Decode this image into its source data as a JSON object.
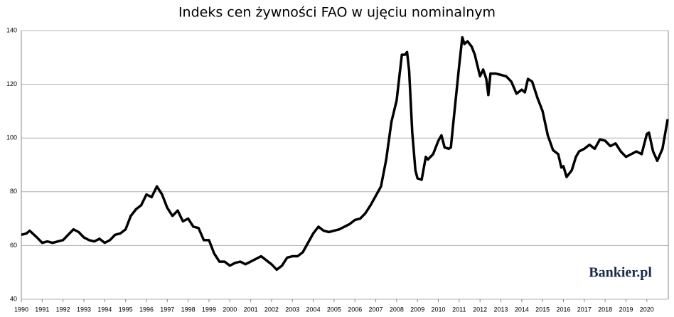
{
  "chart_data": {
    "type": "line",
    "title": "Indeks cen żywności FAO w ujęciu nominalnym",
    "watermark": "Bankier.pl",
    "x": [
      1990,
      1990.25,
      1990.4,
      1990.75,
      1991,
      1991.25,
      1991.5,
      1991.75,
      1992,
      1992.25,
      1992.5,
      1992.75,
      1993,
      1993.25,
      1993.5,
      1993.75,
      1994,
      1994.25,
      1994.5,
      1994.75,
      1995,
      1995.25,
      1995.5,
      1995.75,
      1996,
      1996.25,
      1996.5,
      1996.75,
      1997,
      1997.25,
      1997.5,
      1997.75,
      1998,
      1998.25,
      1998.5,
      1998.75,
      1999,
      1999.25,
      1999.5,
      1999.75,
      2000,
      2000.25,
      2000.5,
      2000.75,
      2001,
      2001.25,
      2001.5,
      2001.75,
      2002,
      2002.25,
      2002.5,
      2002.75,
      2003,
      2003.25,
      2003.5,
      2003.75,
      2004,
      2004.25,
      2004.5,
      2004.75,
      2005,
      2005.25,
      2005.5,
      2005.75,
      2006,
      2006.25,
      2006.5,
      2006.75,
      2007,
      2007.25,
      2007.5,
      2007.75,
      2008,
      2008.25,
      2008.4,
      2008.5,
      2008.6,
      2008.75,
      2008.9,
      2009,
      2009.2,
      2009.4,
      2009.5,
      2009.75,
      2010,
      2010.15,
      2010.3,
      2010.5,
      2010.6,
      2010.75,
      2011,
      2011.15,
      2011.25,
      2011.4,
      2011.6,
      2011.75,
      2012,
      2012.15,
      2012.3,
      2012.4,
      2012.5,
      2012.75,
      2013,
      2013.25,
      2013.5,
      2013.75,
      2014,
      2014.15,
      2014.3,
      2014.5,
      2014.75,
      2015,
      2015.25,
      2015.5,
      2015.75,
      2015.9,
      2016,
      2016.15,
      2016.4,
      2016.6,
      2016.75,
      2017,
      2017.25,
      2017.5,
      2017.75,
      2018,
      2018.25,
      2018.5,
      2018.75,
      2019,
      2019.25,
      2019.5,
      2019.75,
      2020,
      2020.1,
      2020.3,
      2020.5,
      2020.75,
      2021
    ],
    "series": [
      {
        "name": "FAO",
        "color": "#000000",
        "values": [
          64,
          64.5,
          65.5,
          63,
          61,
          61.5,
          61,
          61.5,
          62,
          64,
          66,
          65,
          63,
          62,
          61.5,
          62.5,
          61,
          62,
          64,
          64.5,
          66,
          71,
          73.5,
          75,
          79,
          78,
          82,
          79,
          74,
          71,
          73,
          69,
          70,
          67,
          66.5,
          62,
          62,
          57,
          54,
          54,
          52.5,
          53.5,
          54,
          53,
          54,
          55,
          56,
          54.5,
          53,
          51,
          52.5,
          55.5,
          56,
          56,
          57.5,
          61,
          64.5,
          67,
          65.5,
          65,
          65.5,
          66,
          67,
          68,
          69.5,
          70,
          72,
          75,
          78.5,
          82,
          92,
          106,
          114,
          131,
          131,
          132,
          125,
          102,
          88,
          85,
          84.5,
          93,
          92,
          94,
          99,
          101,
          96.5,
          96,
          96.5,
          108,
          127,
          137.5,
          135,
          136,
          134,
          131,
          123,
          125.5,
          122,
          116,
          124,
          124,
          123.5,
          123,
          121,
          116.5,
          118,
          117,
          122,
          121,
          115,
          110,
          101,
          95.5,
          94,
          89,
          89.5,
          85.5,
          88,
          93,
          95,
          96,
          97.5,
          96,
          99.5,
          99,
          97,
          98,
          95,
          93,
          94,
          95,
          94,
          101.5,
          102,
          95,
          91.5,
          96,
          107
        ]
      }
    ],
    "xlim": [
      1990,
      2021.03
    ],
    "xticks": [
      1990,
      1991,
      1992,
      1993,
      1994,
      1995,
      1996,
      1997,
      1998,
      1999,
      2000,
      2001,
      2002,
      2003,
      2004,
      2005,
      2006,
      2007,
      2008,
      2009,
      2010,
      2011,
      2012,
      2013,
      2014,
      2015,
      2016,
      2017,
      2018,
      2019,
      2020
    ],
    "ylim": [
      40,
      140
    ],
    "yticks": [
      40,
      60,
      80,
      100,
      120,
      140
    ],
    "grid": true
  }
}
